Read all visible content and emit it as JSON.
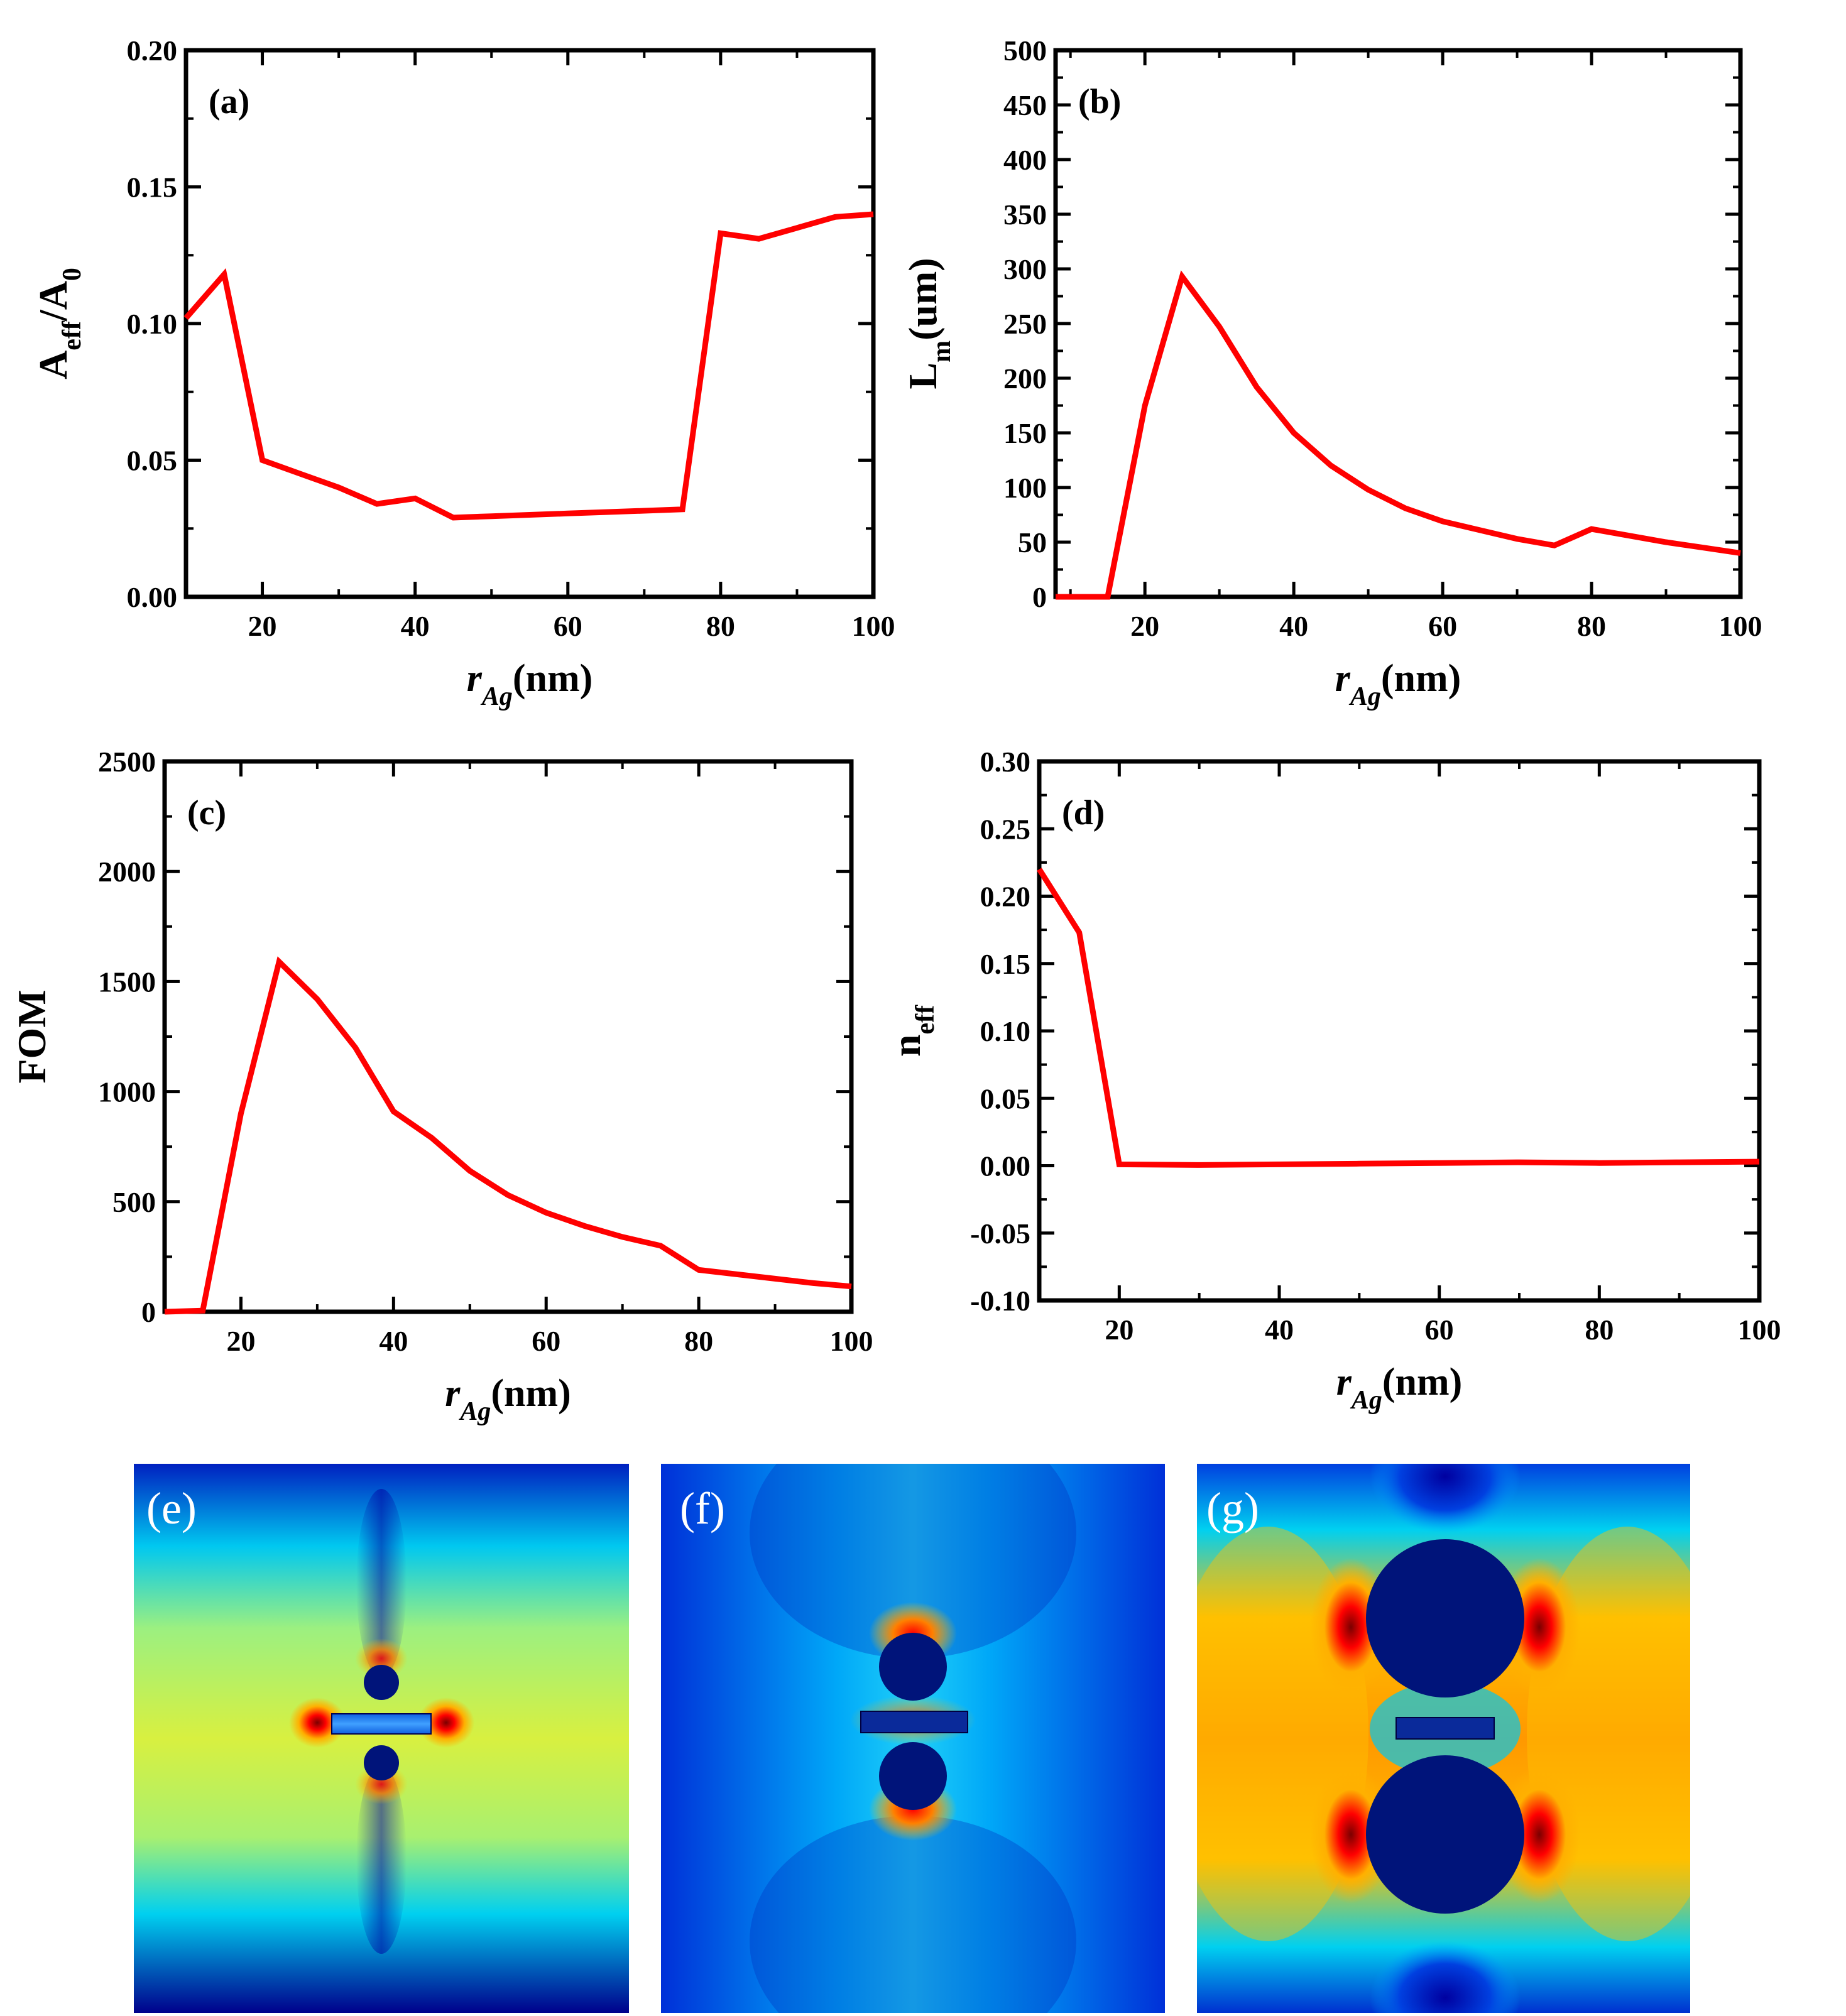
{
  "figure": {
    "panels_ef_g": [
      {
        "label": "(e)"
      },
      {
        "label": "(f)"
      },
      {
        "label": "(g)"
      }
    ]
  },
  "colors": {
    "series": "#ff0000",
    "axes": "#000000",
    "field_low": "#00006a",
    "field_mid": "#00c8f0",
    "field_high": "#ff0000"
  },
  "chart_data": [
    {
      "id": "a",
      "type": "line",
      "panel_label": "(a)",
      "title": "",
      "xlabel": {
        "main": "r",
        "sub": "Ag",
        "unit": "(nm)"
      },
      "ylabel": {
        "main": "A",
        "sub": "eff",
        "rest": "/A",
        "sub2": "0"
      },
      "xlim": [
        10,
        100
      ],
      "ylim": [
        0,
        0.2
      ],
      "xticks": [
        "20",
        "40",
        "60",
        "80",
        "100"
      ],
      "xtick_values": [
        20,
        40,
        60,
        80,
        100
      ],
      "yticks": [
        "0.00",
        "0.05",
        "0.10",
        "0.15",
        "0.20"
      ],
      "ytick_values": [
        0,
        0.05,
        0.1,
        0.15,
        0.2
      ],
      "minor_y": 0.025,
      "minor_x": 10,
      "series": [
        {
          "name": "A_eff/A_0",
          "x": [
            10,
            15,
            20,
            25,
            30,
            35,
            40,
            45,
            50,
            55,
            60,
            65,
            70,
            75,
            80,
            85,
            90,
            95,
            100
          ],
          "y": [
            0.102,
            0.118,
            0.05,
            0.045,
            0.04,
            0.034,
            0.036,
            0.029,
            0.0295,
            0.03,
            0.0305,
            0.031,
            0.0315,
            0.032,
            0.133,
            0.131,
            0.135,
            0.139,
            0.14
          ]
        }
      ]
    },
    {
      "id": "b",
      "type": "line",
      "panel_label": "(b)",
      "title": "",
      "xlabel": {
        "main": "r",
        "sub": "Ag",
        "unit": "(nm)"
      },
      "ylabel": {
        "main": "L",
        "sub": "m",
        "rest": "(um)",
        "sub2": ""
      },
      "xlim": [
        8,
        100
      ],
      "ylim": [
        0,
        500
      ],
      "xticks": [
        "20",
        "40",
        "60",
        "80",
        "100"
      ],
      "xtick_values": [
        20,
        40,
        60,
        80,
        100
      ],
      "yticks": [
        "0",
        "50",
        "100",
        "150",
        "200",
        "250",
        "300",
        "350",
        "400",
        "450",
        "500"
      ],
      "ytick_values": [
        0,
        50,
        100,
        150,
        200,
        250,
        300,
        350,
        400,
        450,
        500
      ],
      "minor_y": 25,
      "minor_x": 10,
      "series": [
        {
          "name": "L_m",
          "x": [
            8,
            10,
            15,
            20,
            25,
            30,
            35,
            40,
            45,
            50,
            55,
            60,
            65,
            70,
            75,
            80,
            85,
            90,
            95,
            100
          ],
          "y": [
            0,
            0,
            0,
            175,
            293,
            247,
            192,
            150,
            120,
            98,
            81,
            69,
            61,
            53,
            47,
            62,
            56,
            50,
            45,
            40
          ]
        }
      ]
    },
    {
      "id": "c",
      "type": "line",
      "panel_label": "(c)",
      "title": "",
      "xlabel": {
        "main": "r",
        "sub": "Ag",
        "unit": "(nm)"
      },
      "ylabel": {
        "main": "FOM",
        "sub": "",
        "rest": "",
        "sub2": ""
      },
      "xlim": [
        10,
        100
      ],
      "ylim": [
        0,
        2500
      ],
      "xticks": [
        "20",
        "40",
        "60",
        "80",
        "100"
      ],
      "xtick_values": [
        20,
        40,
        60,
        80,
        100
      ],
      "yticks": [
        "0",
        "500",
        "1000",
        "1500",
        "2000",
        "2500"
      ],
      "ytick_values": [
        0,
        500,
        1000,
        1500,
        2000,
        2500
      ],
      "minor_y": 250,
      "minor_x": 10,
      "series": [
        {
          "name": "FOM",
          "x": [
            10,
            15,
            20,
            25,
            30,
            35,
            40,
            45,
            50,
            55,
            60,
            65,
            70,
            75,
            80,
            85,
            90,
            95,
            100
          ],
          "y": [
            0,
            5,
            900,
            1590,
            1420,
            1200,
            910,
            790,
            640,
            530,
            450,
            390,
            340,
            300,
            190,
            170,
            150,
            130,
            115
          ]
        }
      ]
    },
    {
      "id": "d",
      "type": "line",
      "panel_label": "(d)",
      "title": "",
      "xlabel": {
        "main": "r",
        "sub": "Ag",
        "unit": "(nm)"
      },
      "ylabel": {
        "main": "n",
        "sub": "eff",
        "rest": "",
        "sub2": ""
      },
      "xlim": [
        10,
        100
      ],
      "ylim": [
        -0.1,
        0.3
      ],
      "xticks": [
        "20",
        "40",
        "60",
        "80",
        "100"
      ],
      "xtick_values": [
        20,
        40,
        60,
        80,
        100
      ],
      "yticks": [
        "-0.10",
        "-0.05",
        "0.00",
        "0.05",
        "0.10",
        "0.15",
        "0.20",
        "0.25",
        "0.30"
      ],
      "ytick_values": [
        -0.1,
        -0.05,
        0,
        0.05,
        0.1,
        0.15,
        0.2,
        0.25,
        0.3
      ],
      "minor_y": 0.025,
      "minor_x": 10,
      "series": [
        {
          "name": "n_eff",
          "x": [
            10,
            15,
            20,
            30,
            40,
            50,
            60,
            70,
            80,
            90,
            100
          ],
          "y": [
            0.22,
            0.173,
            0.001,
            0.0005,
            0.001,
            0.0015,
            0.002,
            0.0025,
            0.002,
            0.0025,
            0.003
          ]
        }
      ]
    }
  ]
}
